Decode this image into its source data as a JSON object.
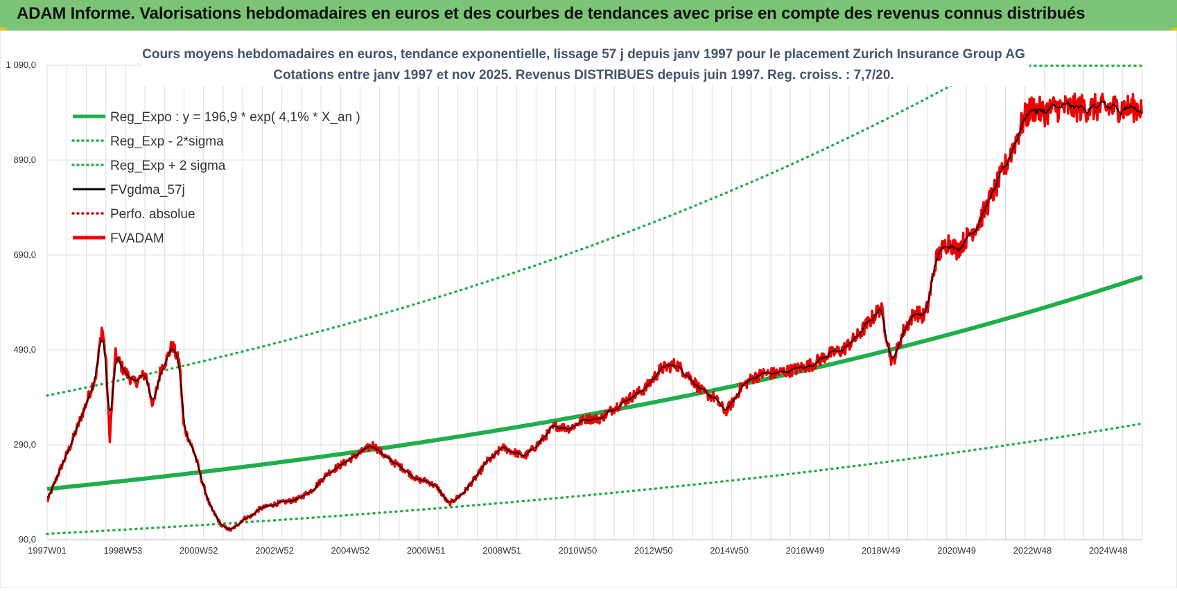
{
  "header": {
    "title": "ADAM Informe. Valorisations hebdomadaires en euros et des courbes de tendances avec prise en compte des revenus connus distribués"
  },
  "chart_data": {
    "type": "line",
    "title_line1": "Cours moyens hebdomadaires en euros, tendance exponentielle, lissage 57 j depuis janv 1997  pour le placement Zurich Insurance Group AG",
    "title_line2": "Cotations entre janv 1997 et nov 2025. Revenus DISTRIBUES depuis juin 1997. Reg.  croiss. : 7,7/20.",
    "ylim": [
      90,
      1090
    ],
    "y_ticks": [
      90,
      290,
      490,
      690,
      890,
      1090
    ],
    "y_tick_labels": [
      "90,0",
      "290,0",
      "490,0",
      "690,0",
      "890,0",
      "1 090,0"
    ],
    "xlim": [
      1997.0,
      2025.9
    ],
    "x_tick_positions": [
      1997.0,
      1999.0,
      2001.0,
      2003.0,
      2005.0,
      2007.0,
      2009.0,
      2011.0,
      2013.0,
      2015.0,
      2017.0,
      2019.0,
      2021.0,
      2023.0,
      2025.0
    ],
    "x_tick_labels": [
      "1997W01",
      "1998W53",
      "2000W52",
      "2002W52",
      "2004W52",
      "2006W51",
      "2008W51",
      "2010W50",
      "2012W50",
      "2014W50",
      "2016W49",
      "2018W49",
      "2020W49",
      "2022W48",
      "2024W48"
    ],
    "legend": [
      {
        "label": "Reg_Expo : y = 196,9 * exp( 4,1% *  X_an )",
        "color": "#1fae4b",
        "style": "solid-thick"
      },
      {
        "label": "Reg_Exp - 2*sigma",
        "color": "#1fae4b",
        "style": "dotted"
      },
      {
        "label": "Reg_Exp + 2 sigma",
        "color": "#1fae4b",
        "style": "dotted"
      },
      {
        "label": "FVgdma_57j",
        "color": "#000000",
        "style": "solid"
      },
      {
        "label": "Perfo. absolue",
        "color": "#cc0000",
        "style": "dotted"
      },
      {
        "label": "FVADAM",
        "color": "#ee0000",
        "style": "solid-thick"
      }
    ],
    "series": [
      {
        "name": "Reg_Expo",
        "a": 196.9,
        "rate": 0.041,
        "x0": 1997.0
      },
      {
        "name": "Reg_Exp - 2*sigma",
        "factor": 0.52
      },
      {
        "name": "Reg_Exp + 2 sigma",
        "factor": 2.0
      },
      {
        "name": "FVADAM",
        "x": [
          1997.0,
          1997.3,
          1997.6,
          1998.0,
          1998.3,
          1998.45,
          1998.55,
          1998.65,
          1998.8,
          1999.0,
          1999.3,
          1999.6,
          1999.8,
          2000.0,
          2000.15,
          2000.3,
          2000.5,
          2000.6,
          2000.75,
          2000.9,
          2001.1,
          2001.3,
          2001.6,
          2001.85,
          2002.0,
          2002.2,
          2002.4,
          2002.6,
          2002.8,
          2003.0,
          2003.3,
          2003.6,
          2004.0,
          2004.4,
          2004.8,
          2005.2,
          2005.6,
          2006.0,
          2006.4,
          2006.8,
          2007.0,
          2007.3,
          2007.6,
          2008.0,
          2008.2,
          2008.4,
          2008.6,
          2008.8,
          2009.0,
          2009.3,
          2009.6,
          2010.0,
          2010.4,
          2010.8,
          2011.2,
          2011.6,
          2012.0,
          2012.4,
          2012.8,
          2013.2,
          2013.6,
          2014.0,
          2014.3,
          2014.6,
          2014.9,
          2015.1,
          2015.3,
          2015.6,
          2015.9,
          2016.2,
          2016.5,
          2016.8,
          2017.2,
          2017.6,
          2018.0,
          2018.4,
          2018.8,
          2019.0,
          2019.3,
          2019.6,
          2019.9,
          2020.15,
          2020.25,
          2020.3,
          2020.45,
          2020.6,
          2020.8,
          2021.0,
          2021.3,
          2021.6,
          2021.9,
          2022.2,
          2022.5,
          2022.8,
          2023.0,
          2023.3,
          2023.6,
          2023.9,
          2024.2,
          2024.5,
          2024.8,
          2025.0,
          2025.3,
          2025.6,
          2025.9
        ],
        "y": [
          170,
          230,
          285,
          370,
          440,
          540,
          470,
          300,
          480,
          450,
          420,
          440,
          370,
          450,
          470,
          500,
          460,
          330,
          300,
          270,
          210,
          160,
          120,
          110,
          120,
          135,
          140,
          155,
          160,
          165,
          170,
          175,
          195,
          230,
          250,
          270,
          290,
          260,
          240,
          215,
          215,
          200,
          165,
          190,
          210,
          230,
          255,
          265,
          285,
          275,
          265,
          295,
          330,
          325,
          345,
          345,
          370,
          390,
          410,
          450,
          460,
          430,
          400,
          390,
          360,
          380,
          410,
          430,
          440,
          440,
          445,
          450,
          460,
          480,
          490,
          520,
          560,
          580,
          460,
          530,
          570,
          560,
          585,
          610,
          680,
          700,
          720,
          700,
          730,
          760,
          810,
          860,
          920,
          980,
          1000,
          990,
          1000,
          1000,
          1000,
          1000,
          1000,
          1000,
          1000,
          1000,
          1000
        ]
      },
      {
        "name": "FVgdma_57j",
        "note": "smoothed FVADAM (57-day moving average)"
      }
    ]
  }
}
